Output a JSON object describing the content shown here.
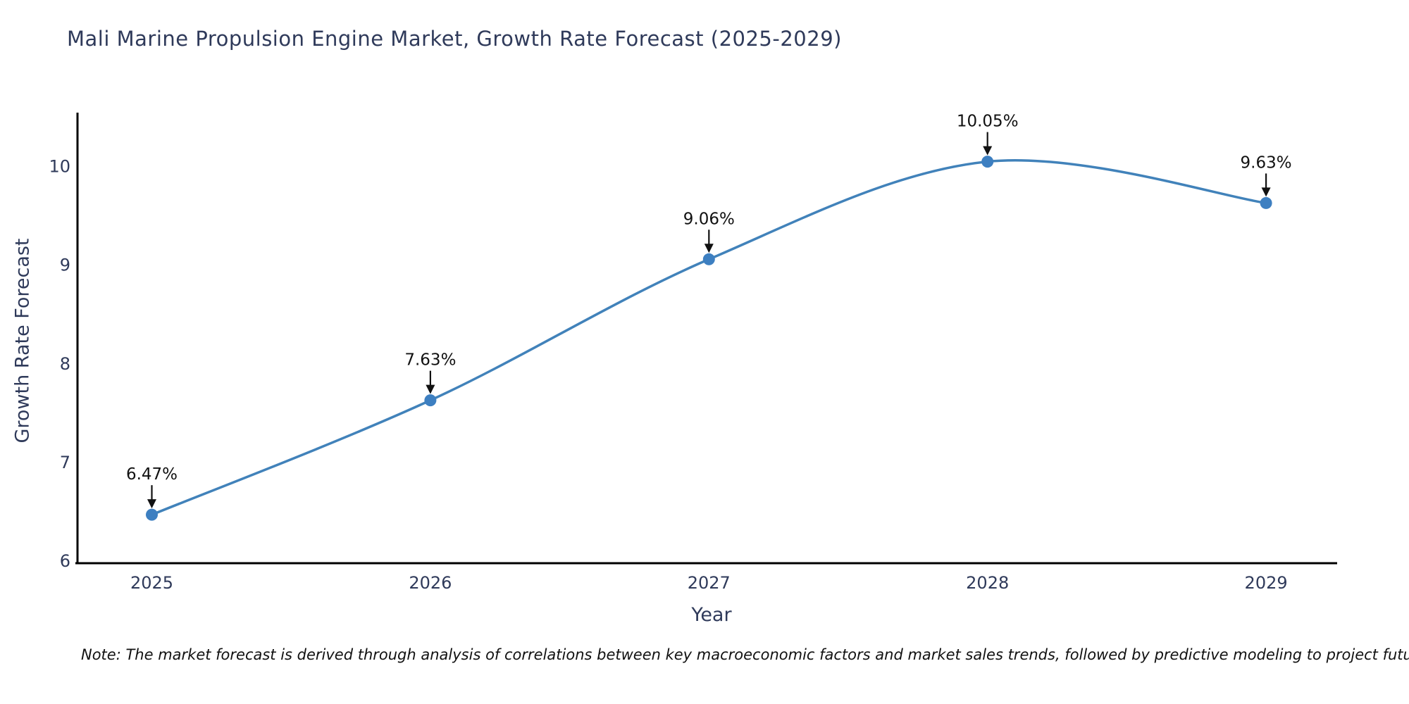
{
  "chart_data": {
    "type": "line",
    "title": "Mali Marine Propulsion Engine Market, Growth Rate Forecast (2025-2029)",
    "xlabel": "Year",
    "ylabel": "Growth Rate Forecast",
    "x": [
      2025,
      2026,
      2027,
      2028,
      2029
    ],
    "values": [
      6.47,
      7.63,
      9.06,
      10.05,
      9.63
    ],
    "point_labels": [
      "6.47%",
      "7.63%",
      "9.06%",
      "10.05%",
      "9.63%"
    ],
    "yticks": [
      6,
      7,
      8,
      9,
      10
    ],
    "ylim": [
      6,
      10.55
    ],
    "grid": false,
    "legend": "none",
    "line_color": "#4182ba",
    "marker_color": "#3d7fc1",
    "axis_color": "#000000",
    "axis_text_color": "#2f3a5a",
    "annotation_color": "#111111"
  },
  "note": {
    "text": "Note: The market forecast is derived through analysis of correlations between key macroeconomic factors and market sales trends, followed by predictive modeling to project future sales"
  }
}
